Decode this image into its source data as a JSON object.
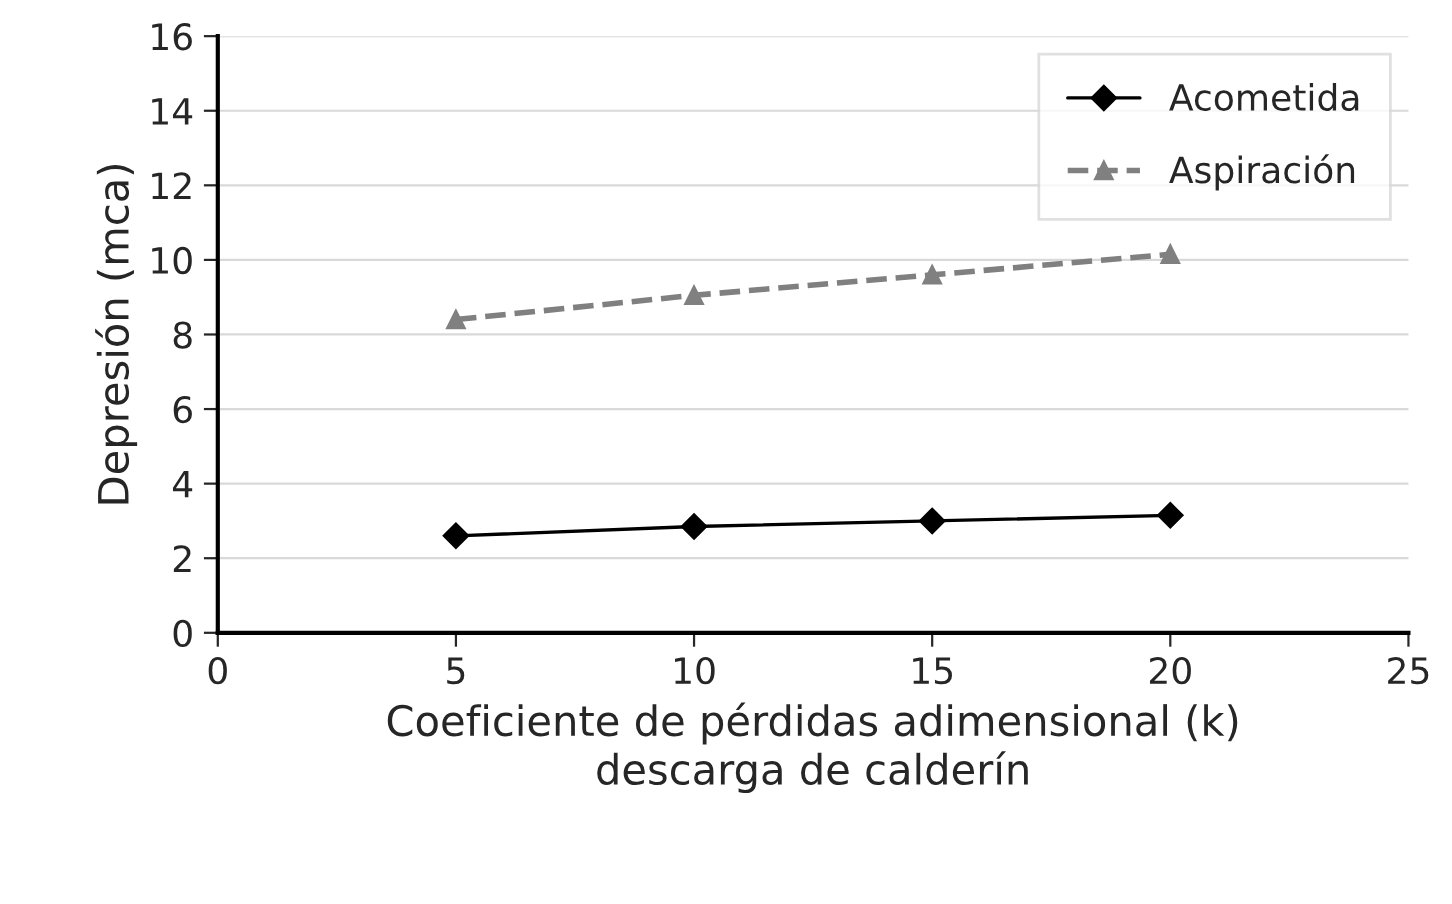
{
  "chart_data": {
    "type": "line",
    "xlabel": "Coeficiente de pérdidas adimensional (k)\ndescarga de calderín",
    "ylabel": "Depresión (mca)",
    "x": [
      5,
      10,
      15,
      20
    ],
    "series": [
      {
        "name": "Acometida",
        "color": "#000000",
        "marker": "diamond",
        "line_style": "solid",
        "values": [
          2.6,
          2.85,
          3.0,
          3.15
        ]
      },
      {
        "name": "Aspiración",
        "color": "#808080",
        "marker": "triangle",
        "line_style": "dashed",
        "values": [
          8.4,
          9.05,
          9.6,
          10.15
        ]
      }
    ],
    "xlim": [
      0,
      25
    ],
    "xticks": [
      0,
      5,
      10,
      15,
      20,
      25
    ],
    "ylim": [
      0,
      16
    ],
    "yticks": [
      0,
      2,
      4,
      6,
      8,
      10,
      12,
      14,
      16
    ],
    "grid": "y",
    "legend": "top right"
  }
}
